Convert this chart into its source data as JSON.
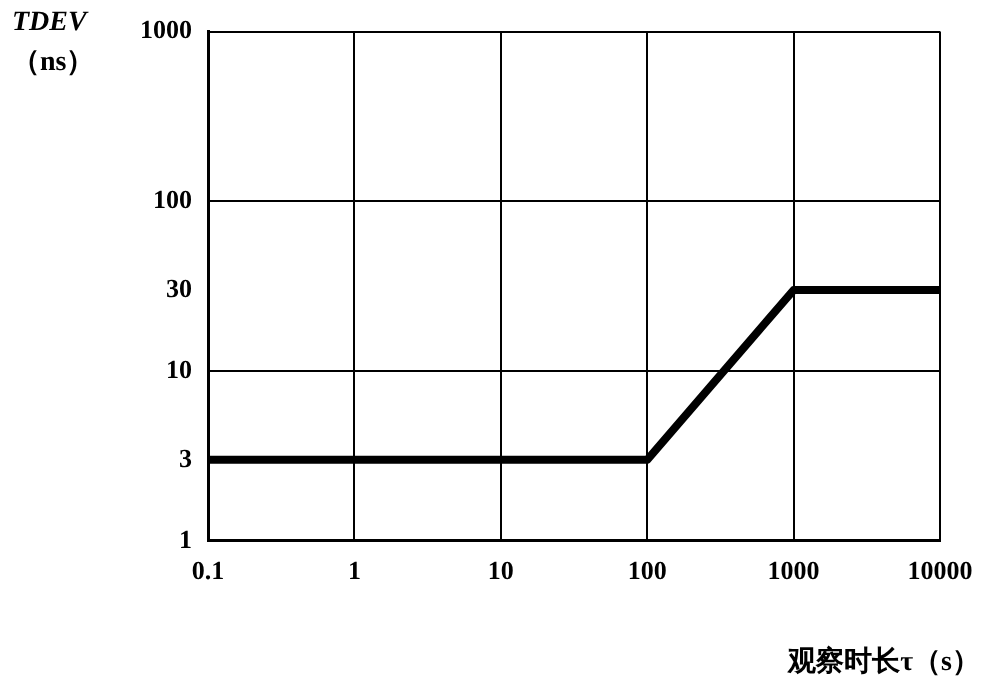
{
  "chart_data": {
    "type": "line",
    "xlabel": "观察时长τ（s）",
    "ylabel": "TDEV（ns）",
    "x": [
      0.1,
      100,
      1000,
      10000
    ],
    "series": [
      {
        "color": "#000000",
        "values": [
          3,
          3,
          30,
          30
        ]
      }
    ],
    "log": "xy",
    "xlim": [
      0.1,
      10000
    ],
    "xticks": [
      0.1,
      1,
      10,
      100,
      1000,
      10000
    ],
    "ylim": [
      1,
      1000
    ],
    "yticks": [
      1,
      3,
      10,
      30,
      100,
      1000
    ],
    "grid": true,
    "legend": false,
    "marker": "none",
    "line_style": "solid"
  }
}
